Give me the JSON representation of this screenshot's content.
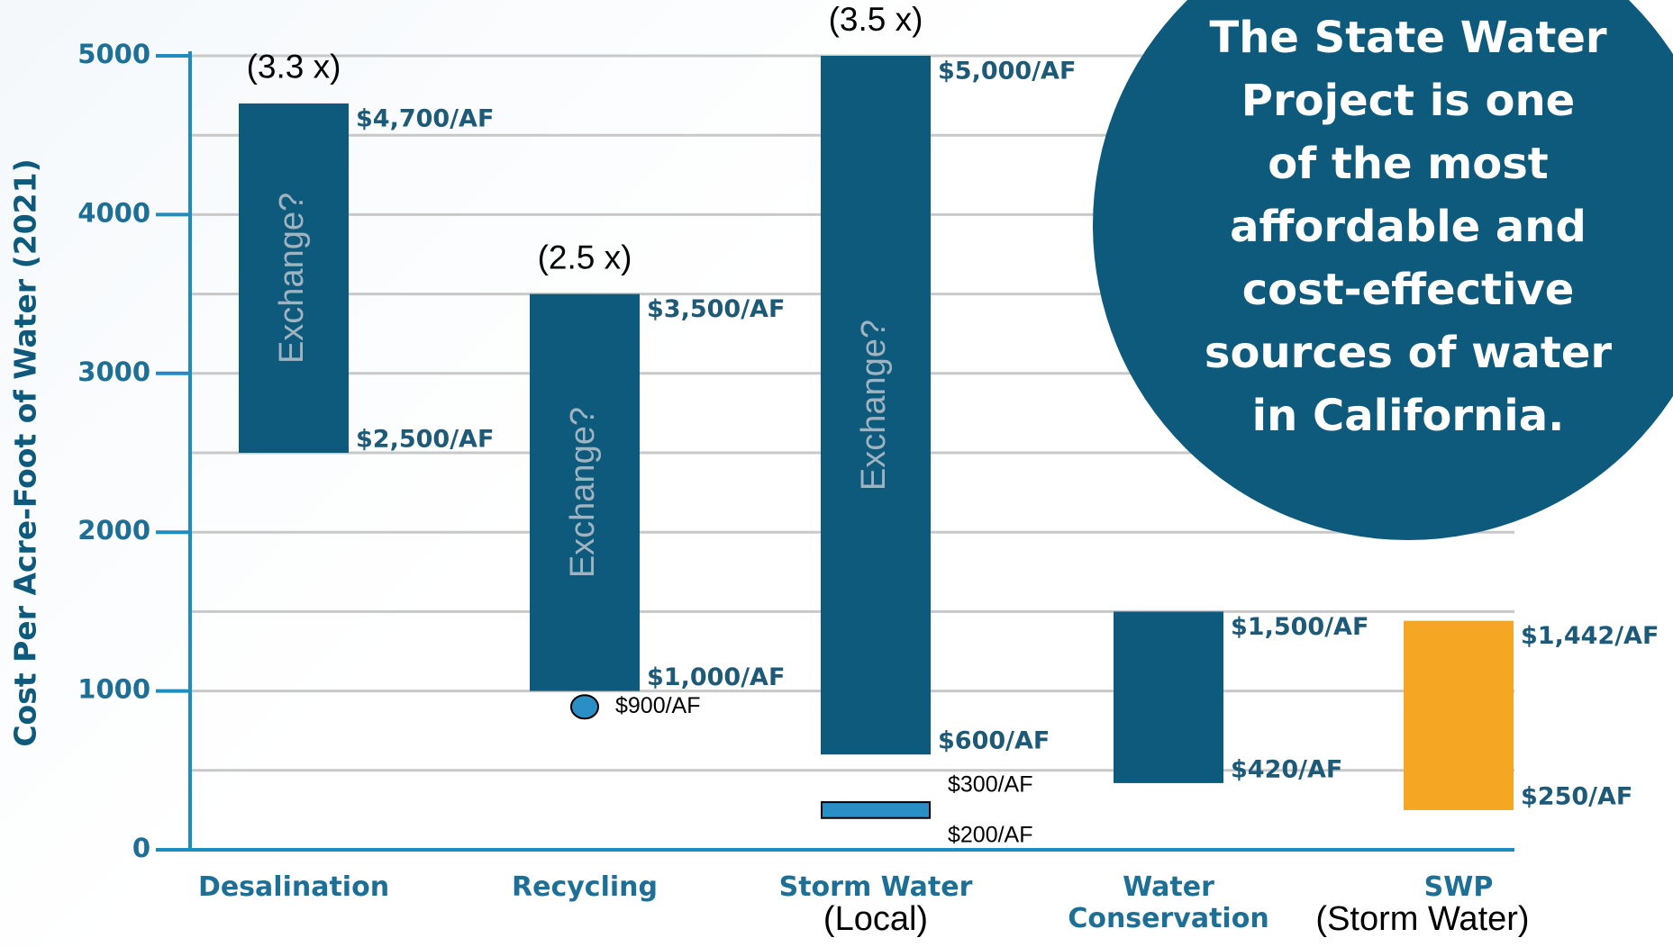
{
  "chart_data": {
    "type": "range_bar",
    "y_label": "Cost Per Acre-Foot of Water (2021)",
    "categories": [
      "Desalination",
      "Recycling",
      "Storm Water",
      "Water Conservation",
      "SWP"
    ],
    "subcategories": [
      null,
      null,
      "(Local)",
      null,
      "(Storm Water)"
    ],
    "low": [
      2500,
      1000,
      600,
      420,
      250
    ],
    "high": [
      4700,
      3500,
      5000,
      1500,
      1442
    ],
    "low_labels": [
      "$2,500/AF",
      "$1,000/AF",
      "$600/AF",
      "$420/AF",
      "$250/AF"
    ],
    "high_labels": [
      "$4,700/AF",
      "$3,500/AF",
      "$5,000/AF",
      "$1,500/AF",
      "$1,442/AF"
    ],
    "colors": [
      "#0e5a7c",
      "#0e5a7c",
      "#0e5a7c",
      "#0e5a7c",
      "#f5a623"
    ],
    "bar_text": [
      "Exchange?",
      "Exchange?",
      "Exchange?",
      null,
      null
    ],
    "multipliers": [
      "(3.3 x)",
      "(2.5 x)",
      "(3.5 x)",
      null,
      null
    ],
    "points": [
      {
        "category": 1,
        "value": 900,
        "label": "$900/AF",
        "color": "#2a8fc4"
      }
    ],
    "small_ranges": [
      {
        "category": 2,
        "low": 200,
        "high": 300,
        "low_label": "$200/AF",
        "high_label": "$300/AF",
        "color": "#2a8fc4"
      }
    ],
    "ylim": [
      0,
      5000
    ],
    "yticks": [
      0,
      1000,
      2000,
      3000,
      4000,
      5000
    ],
    "minor_yticks": [
      500,
      1500,
      2500,
      3500,
      4500
    ],
    "grid": true,
    "callout_lines": [
      "The State Water",
      "Project is one",
      "of the most",
      "affordable and",
      "cost-effective",
      "sources of water",
      "in California."
    ]
  }
}
